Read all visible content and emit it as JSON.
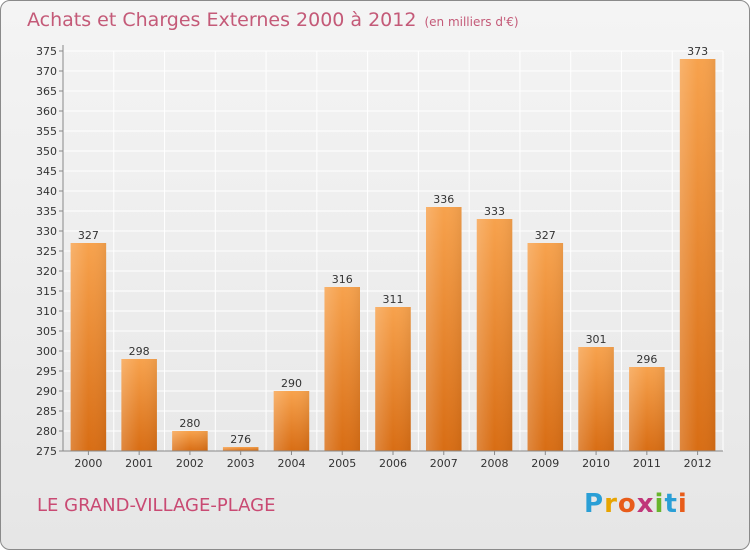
{
  "header": {
    "title": "Achats et Charges Externes 2000 à 2012",
    "subtitle": "(en milliers d'€)"
  },
  "commune_name": "LE GRAND-VILLAGE-PLAGE",
  "logo": {
    "letters": [
      "P",
      "r",
      "o",
      "x",
      "i",
      "t",
      "i"
    ],
    "colors": [
      "#2a9fd6",
      "#e8a400",
      "#e85c1a",
      "#c0367a",
      "#69b52d",
      "#2a9fd6",
      "#e85c1a"
    ]
  },
  "colors": {
    "bar_top": "#f7a24d",
    "bar_bottom": "#d86d14",
    "grid": "#ffffff",
    "axis_text": "#333333"
  },
  "chart_data": {
    "type": "bar",
    "title": "Achats et Charges Externes 2000 à 2012",
    "subtitle": "(en milliers d'€)",
    "categories": [
      "2000",
      "2001",
      "2002",
      "2003",
      "2004",
      "2005",
      "2006",
      "2007",
      "2008",
      "2009",
      "2010",
      "2011",
      "2012"
    ],
    "values": [
      327,
      298,
      280,
      276,
      290,
      316,
      311,
      336,
      333,
      327,
      301,
      296,
      373
    ],
    "ylim": [
      275,
      375
    ],
    "ytick_step": 5,
    "grid": true,
    "data_labels": true
  }
}
